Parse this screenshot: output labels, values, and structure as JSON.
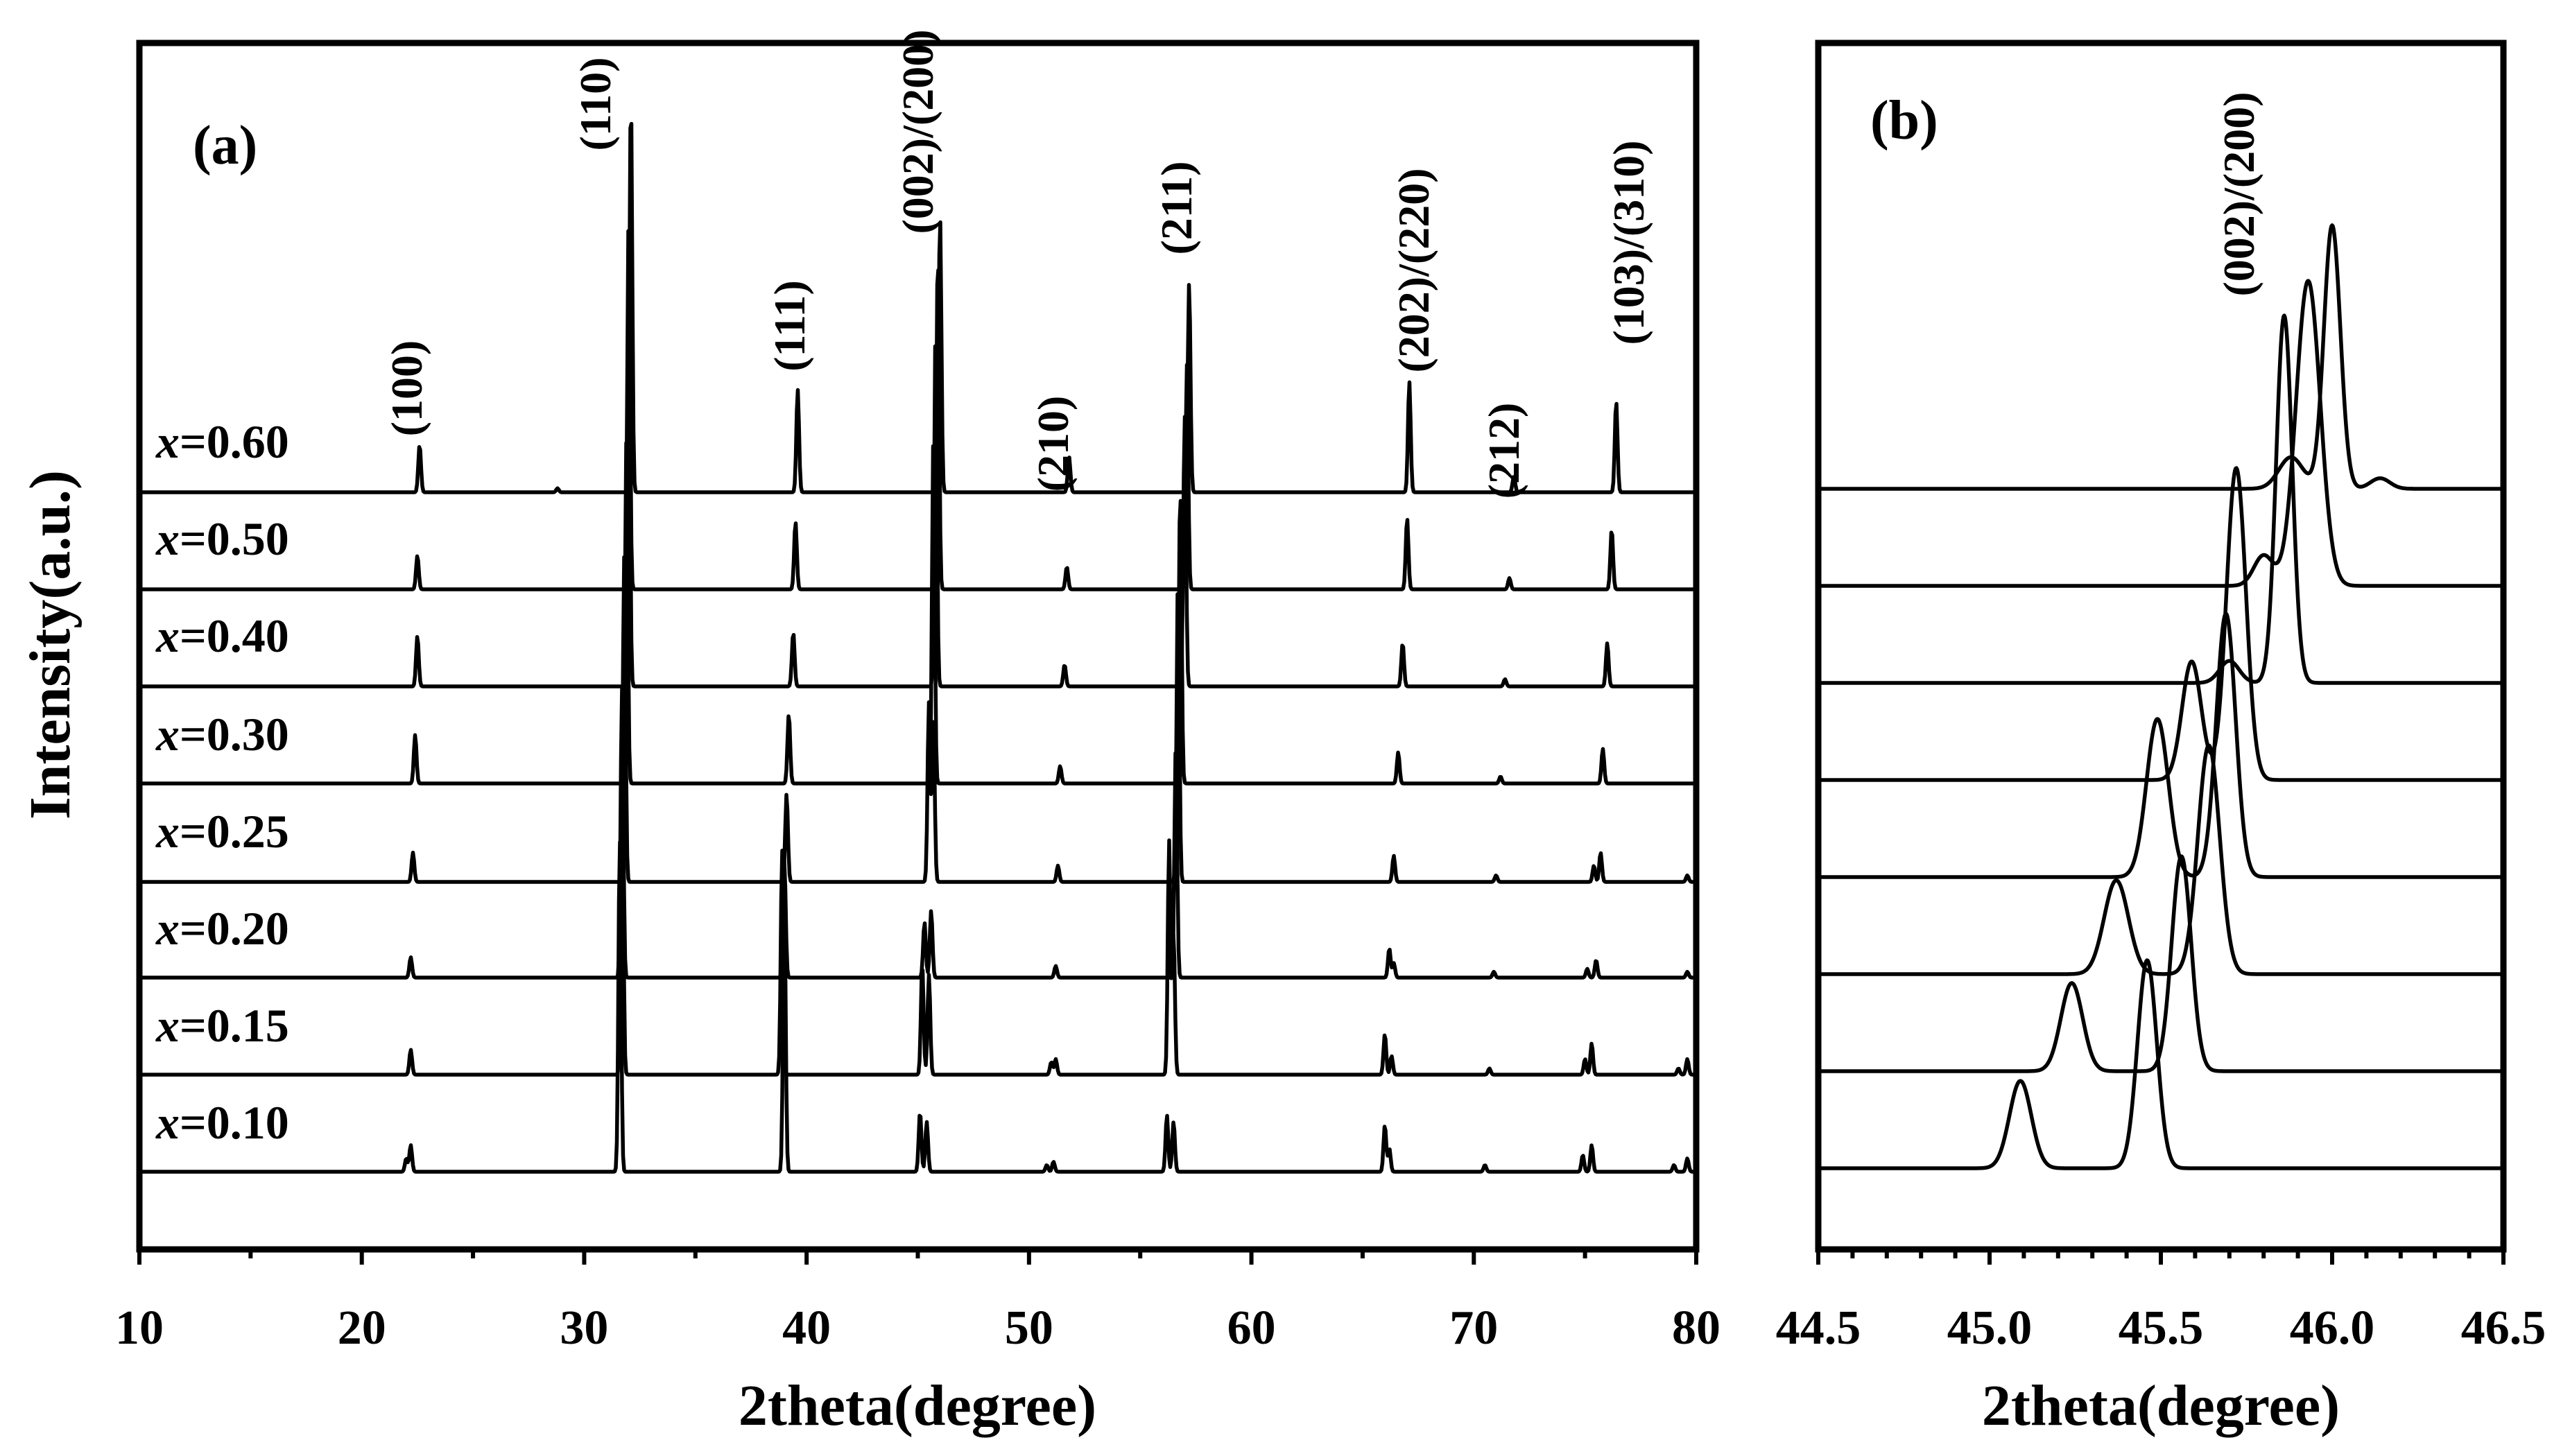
{
  "chart_data": [
    {
      "panel": "(a)",
      "type": "line",
      "title": "",
      "xlabel": "2theta(degree)",
      "ylabel": "Intensity(a.u.)",
      "xlim": [
        10,
        80
      ],
      "x_ticks": [
        10,
        20,
        30,
        40,
        50,
        60,
        70,
        80
      ],
      "stacked_offset": true,
      "series": [
        {
          "name": "x=0.60",
          "label_var": "x",
          "label_value": "=0.60",
          "peaks": [
            [
              22.6,
              0.12
            ],
            [
              28.8,
              0.01
            ],
            [
              32.1,
              1.0
            ],
            [
              39.6,
              0.26
            ],
            [
              46.0,
              0.7
            ],
            [
              51.8,
              0.09
            ],
            [
              57.2,
              0.53
            ],
            [
              67.1,
              0.28
            ],
            [
              71.8,
              0.04
            ],
            [
              76.4,
              0.23
            ]
          ]
        },
        {
          "name": "x=0.50",
          "label_var": "x",
          "label_value": "=0.50",
          "peaks": [
            [
              22.5,
              0.09
            ],
            [
              32.0,
              1.0
            ],
            [
              39.5,
              0.18
            ],
            [
              45.9,
              0.9
            ],
            [
              51.7,
              0.06
            ],
            [
              57.1,
              0.6
            ],
            [
              67.0,
              0.19
            ],
            [
              71.6,
              0.03
            ],
            [
              76.2,
              0.16
            ]
          ]
        },
        {
          "name": "x=0.40",
          "label_var": "x",
          "label_value": "=0.40",
          "peaks": [
            [
              22.5,
              0.14
            ],
            [
              32.0,
              1.0
            ],
            [
              39.4,
              0.15
            ],
            [
              45.8,
              1.0
            ],
            [
              51.6,
              0.06
            ],
            [
              57.0,
              0.75
            ],
            [
              66.8,
              0.12
            ],
            [
              71.4,
              0.02
            ],
            [
              76.0,
              0.12
            ]
          ]
        },
        {
          "name": "x=0.30",
          "label_var": "x",
          "label_value": "=0.30",
          "peaks": [
            [
              22.4,
              0.14
            ],
            [
              31.9,
              1.0
            ],
            [
              39.2,
              0.2
            ],
            [
              45.7,
              1.0
            ],
            [
              51.4,
              0.05
            ],
            [
              56.8,
              0.85
            ],
            [
              66.6,
              0.09
            ],
            [
              71.2,
              0.02
            ],
            [
              75.8,
              0.1
            ]
          ]
        },
        {
          "name": "x=0.25",
          "label_var": "x",
          "label_value": "=0.25",
          "peaks": [
            [
              22.3,
              0.09
            ],
            [
              31.8,
              1.0
            ],
            [
              39.1,
              0.27
            ],
            [
              45.5,
              0.55
            ],
            [
              45.7,
              0.5
            ],
            [
              51.3,
              0.05
            ],
            [
              56.7,
              0.95
            ],
            [
              66.4,
              0.08
            ],
            [
              71.0,
              0.02
            ],
            [
              75.4,
              0.05
            ],
            [
              75.7,
              0.09
            ],
            [
              79.6,
              0.02
            ]
          ]
        },
        {
          "name": "x=0.20",
          "label_var": "x",
          "label_value": "=0.20",
          "peaks": [
            [
              22.2,
              0.07
            ],
            [
              31.7,
              1.0
            ],
            [
              39.0,
              0.4
            ],
            [
              45.3,
              0.19
            ],
            [
              45.6,
              0.23
            ],
            [
              51.2,
              0.04
            ],
            [
              56.6,
              0.8
            ],
            [
              66.2,
              0.1
            ],
            [
              66.4,
              0.05
            ],
            [
              70.9,
              0.02
            ],
            [
              75.1,
              0.03
            ],
            [
              75.5,
              0.06
            ],
            [
              79.6,
              0.02
            ]
          ]
        },
        {
          "name": "x=0.15",
          "label_var": "x",
          "label_value": "=0.15",
          "peaks": [
            [
              22.2,
              0.08
            ],
            [
              31.7,
              1.0
            ],
            [
              38.9,
              0.72
            ],
            [
              45.2,
              0.35
            ],
            [
              45.5,
              0.32
            ],
            [
              51.0,
              0.04
            ],
            [
              51.2,
              0.05
            ],
            [
              56.3,
              0.75
            ],
            [
              56.5,
              0.45
            ],
            [
              66.0,
              0.13
            ],
            [
              66.3,
              0.06
            ],
            [
              70.7,
              0.02
            ],
            [
              75.0,
              0.05
            ],
            [
              75.3,
              0.1
            ],
            [
              79.2,
              0.02
            ],
            [
              79.6,
              0.05
            ]
          ]
        },
        {
          "name": "x=0.10",
          "label_var": "x",
          "label_value": "=0.10",
          "peaks": [
            [
              22.0,
              0.04
            ],
            [
              22.2,
              0.08
            ],
            [
              31.6,
              1.0
            ],
            [
              39.0,
              0.8
            ],
            [
              45.1,
              0.18
            ],
            [
              45.4,
              0.15
            ],
            [
              50.8,
              0.02
            ],
            [
              51.1,
              0.03
            ],
            [
              56.2,
              0.17
            ],
            [
              56.5,
              0.15
            ],
            [
              66.0,
              0.14
            ],
            [
              66.2,
              0.07
            ],
            [
              70.5,
              0.02
            ],
            [
              74.9,
              0.05
            ],
            [
              75.3,
              0.08
            ],
            [
              79.0,
              0.02
            ],
            [
              79.6,
              0.04
            ]
          ]
        }
      ],
      "annotations": [
        "(100)",
        "(110)",
        "(111)",
        "(002)/(200)",
        "(210)",
        "(211)",
        "(202)/(220)",
        "(212)",
        "(103)/(310)"
      ]
    },
    {
      "panel": "(b)",
      "type": "line",
      "title": "",
      "xlabel": "2theta(degree)",
      "xlim": [
        44.5,
        46.5
      ],
      "x_ticks": [
        "44.5",
        "45.0",
        "45.5",
        "46.0",
        "46.5"
      ],
      "stacked_offset": true,
      "series": [
        {
          "name": "x=0.60",
          "peaks": [
            [
              46.0,
              1.0,
              0.034
            ],
            [
              45.88,
              0.12,
              0.05
            ],
            [
              46.14,
              0.04,
              0.04
            ]
          ]
        },
        {
          "name": "x=0.50",
          "peaks": [
            [
              45.93,
              1.0,
              0.05
            ],
            [
              45.8,
              0.1,
              0.04
            ]
          ]
        },
        {
          "name": "x=0.40",
          "peaks": [
            [
              45.86,
              1.0,
              0.033
            ],
            [
              45.7,
              0.06,
              0.04
            ]
          ]
        },
        {
          "name": "x=0.30",
          "peaks": [
            [
              45.72,
              1.0,
              0.04
            ],
            [
              45.59,
              0.38,
              0.04
            ]
          ]
        },
        {
          "name": "x=0.25",
          "peaks": [
            [
              45.69,
              1.0,
              0.04
            ],
            [
              45.49,
              0.6,
              0.045
            ]
          ]
        },
        {
          "name": "x=0.20",
          "peaks": [
            [
              45.64,
              1.0,
              0.045
            ],
            [
              45.37,
              0.41,
              0.05
            ]
          ]
        },
        {
          "name": "x=0.15",
          "peaks": [
            [
              45.56,
              1.0,
              0.04
            ],
            [
              45.24,
              0.41,
              0.045
            ]
          ]
        },
        {
          "name": "x=0.10",
          "peaks": [
            [
              45.46,
              1.0,
              0.04
            ],
            [
              45.09,
              0.42,
              0.045
            ]
          ]
        }
      ],
      "annotations": [
        "(002)/(200)"
      ]
    }
  ],
  "labels": {
    "panel_a": "(a)",
    "panel_b": "(b)",
    "ylabel": "Intensity(a.u.)",
    "xlabel_a": "2theta(degree)",
    "xlabel_b": "2theta(degree)"
  }
}
